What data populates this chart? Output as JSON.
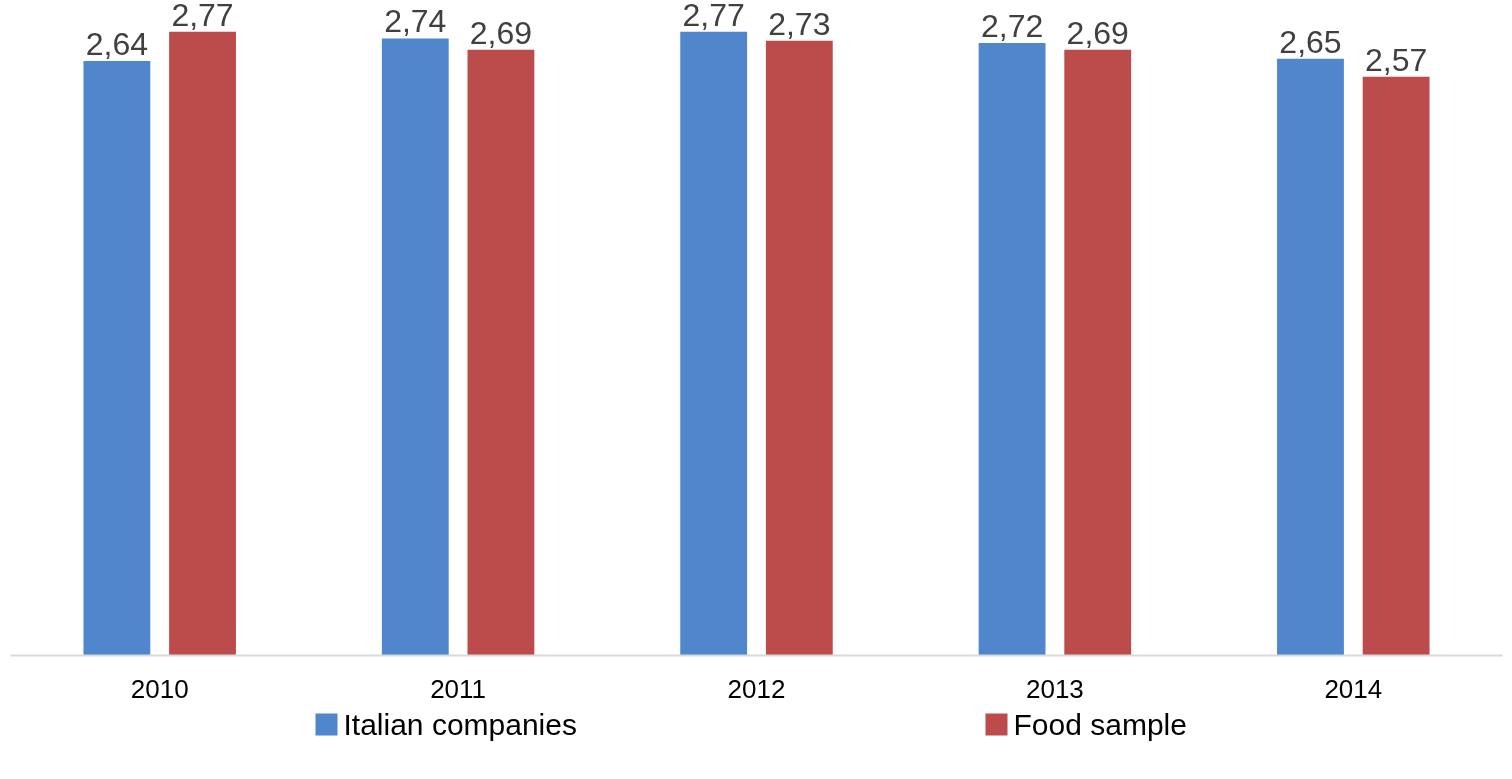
{
  "chart_data": {
    "type": "bar",
    "categories": [
      "2010",
      "2011",
      "2012",
      "2013",
      "2014"
    ],
    "series": [
      {
        "name": "Italian companies",
        "color": "#4f86cc",
        "values": [
          2.64,
          2.74,
          2.77,
          2.72,
          2.65
        ],
        "value_labels": [
          "2,64",
          "2,74",
          "2,77",
          "2,72",
          "2,65"
        ]
      },
      {
        "name": "Food sample",
        "color": "#bc4c4b",
        "values": [
          2.77,
          2.69,
          2.73,
          2.69,
          2.57
        ],
        "value_labels": [
          "2,77",
          "2,69",
          "2,73",
          "2,69",
          "2,57"
        ]
      }
    ],
    "grid": false,
    "legend": "bottom"
  }
}
